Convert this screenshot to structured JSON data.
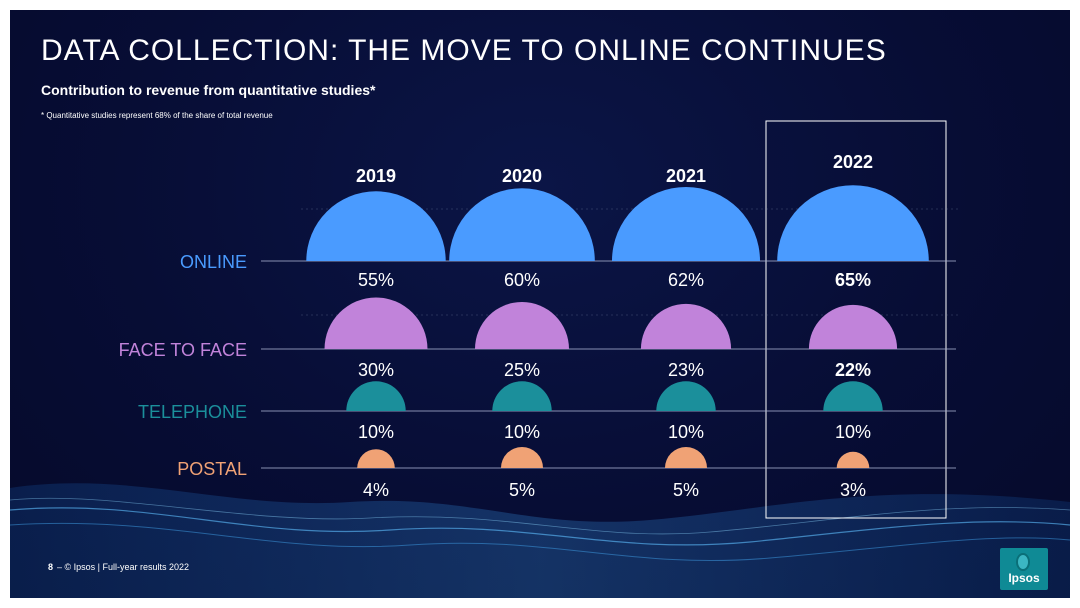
{
  "title": "DATA COLLECTION: THE MOVE TO ONLINE CONTINUES",
  "subtitle": "Contribution to revenue from quantitative studies*",
  "footnote": "* Quantitative studies represent 68% of the share of total revenue",
  "footer": {
    "page_number": "8",
    "text": "– © Ipsos | Full-year results 2022"
  },
  "logo_text": "Ipsos",
  "colors": {
    "online": "#4a9bff",
    "face_to_face": "#c183da",
    "telephone": "#1b8f9b",
    "postal": "#f0a275",
    "highlight_border": "#ffffff",
    "background": "#070d35"
  },
  "chart_data": {
    "type": "semicircle-bubble",
    "title": "",
    "highlighted_year": "2022",
    "years": [
      "2019",
      "2020",
      "2021",
      "2022"
    ],
    "series": [
      {
        "name": "ONLINE",
        "values": [
          55,
          60,
          62,
          65
        ],
        "labels": [
          "55%",
          "60%",
          "62%",
          "65%"
        ]
      },
      {
        "name": "FACE TO FACE",
        "values": [
          30,
          25,
          23,
          22
        ],
        "labels": [
          "30%",
          "25%",
          "23%",
          "22%"
        ]
      },
      {
        "name": "TELEPHONE",
        "values": [
          10,
          10,
          10,
          10
        ],
        "labels": [
          "10%",
          "10%",
          "10%",
          "10%"
        ]
      },
      {
        "name": "POSTAL",
        "values": [
          4,
          5,
          5,
          3
        ],
        "labels": [
          "4%",
          "5%",
          "5%",
          "3%"
        ]
      }
    ]
  }
}
